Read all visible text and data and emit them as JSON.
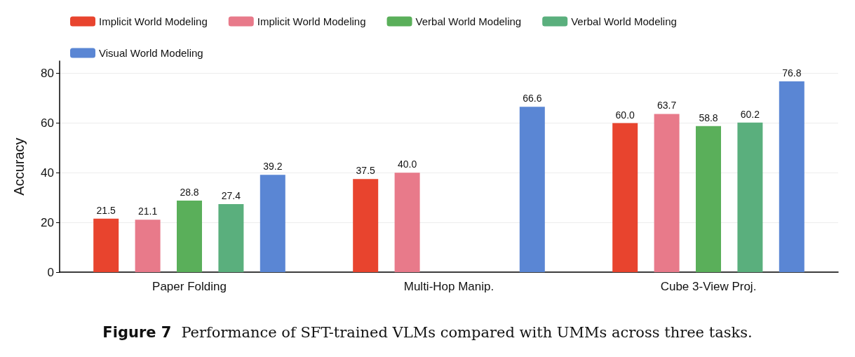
{
  "chart_data": {
    "type": "bar",
    "ylabel": "Accuracy",
    "categories": [
      "Paper Folding",
      "Multi-Hop Manip.",
      "Cube 3-View Proj."
    ],
    "series": [
      {
        "name": "Implicit World Modeling",
        "color": "#e8442e",
        "values": [
          21.5,
          37.5,
          60.0
        ],
        "value_labels": [
          "21.5",
          "37.5",
          "60.0"
        ]
      },
      {
        "name": "Implicit World Modeling",
        "color": "#e87a8a",
        "values": [
          21.1,
          40.0,
          63.7
        ],
        "value_labels": [
          "21.1",
          "40.0",
          "63.7"
        ]
      },
      {
        "name": "Verbal World Modeling",
        "color": "#5aaf5a",
        "values": [
          28.8,
          null,
          58.8
        ],
        "value_labels": [
          "28.8",
          null,
          "58.8"
        ]
      },
      {
        "name": "Verbal World Modeling",
        "color": "#5aaf7d",
        "values": [
          27.4,
          null,
          60.2
        ],
        "value_labels": [
          "27.4",
          null,
          "60.2"
        ]
      },
      {
        "name": "Visual World Modeling",
        "color": "#5a86d4",
        "values": [
          39.2,
          66.6,
          76.8
        ],
        "value_labels": [
          "39.2",
          "66.6",
          "76.8"
        ]
      }
    ],
    "ylim": [
      0,
      85
    ],
    "yticks": [
      0,
      20,
      40,
      60,
      80
    ],
    "grid": "y",
    "legend": "top",
    "annotations": [
      "Figure 7",
      "Performance of SFT-trained VLMs compared with UMMs across three tasks."
    ]
  }
}
